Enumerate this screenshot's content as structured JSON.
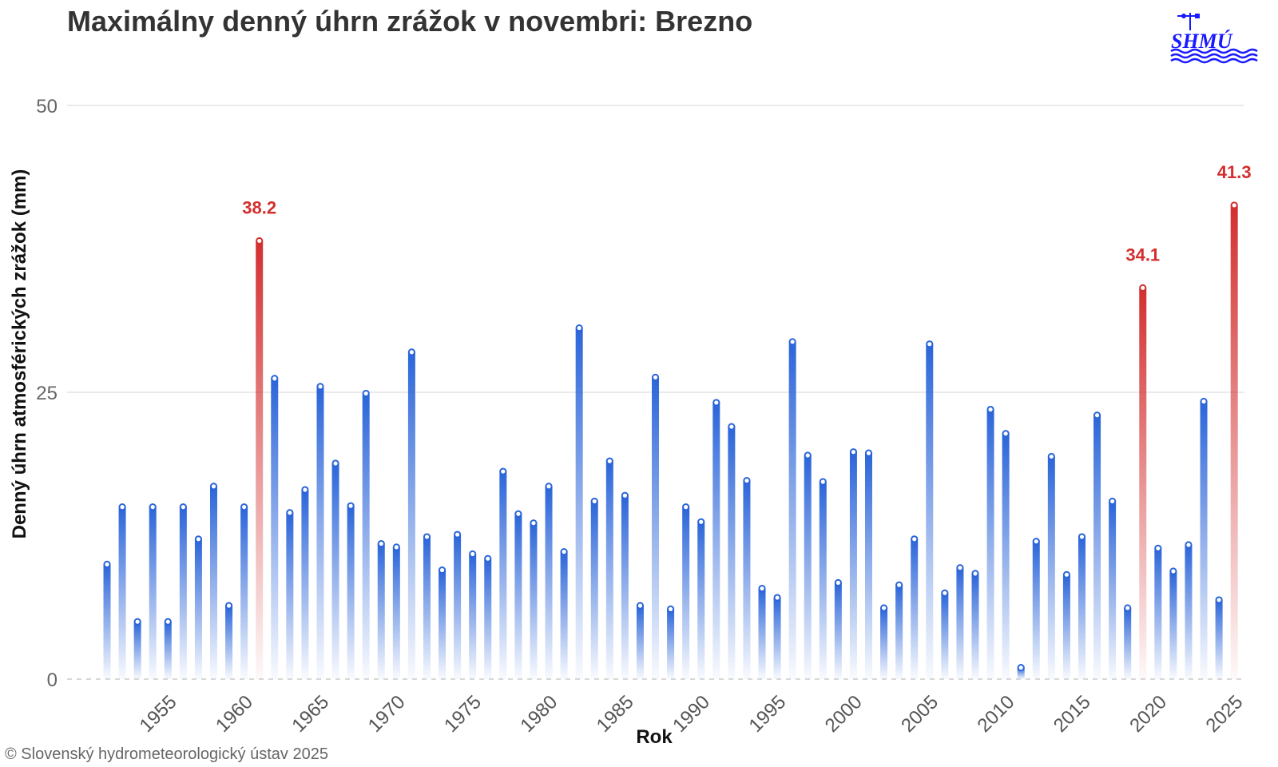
{
  "chart_data": {
    "type": "bar",
    "title": "Maximálny denný úhrn zrážok v novembri: Brezno",
    "xlabel": "Rok",
    "ylabel": "Denný úhrn atmosférických zrážok (mm)",
    "ylim": [
      0,
      50
    ],
    "yticks": [
      "0",
      "25",
      "50"
    ],
    "xticks": [
      "1955",
      "1960",
      "1965",
      "1970",
      "1975",
      "1980",
      "1985",
      "1990",
      "1995",
      "2000",
      "2005",
      "2010",
      "2015",
      "2020",
      "2025"
    ],
    "grid": true,
    "x": [
      1951,
      1952,
      1953,
      1954,
      1955,
      1956,
      1957,
      1958,
      1959,
      1960,
      1961,
      1962,
      1963,
      1964,
      1965,
      1966,
      1967,
      1968,
      1969,
      1970,
      1971,
      1972,
      1973,
      1974,
      1975,
      1976,
      1977,
      1978,
      1979,
      1980,
      1981,
      1982,
      1983,
      1984,
      1985,
      1986,
      1987,
      1988,
      1989,
      1990,
      1991,
      1992,
      1993,
      1994,
      1995,
      1996,
      1997,
      1998,
      1999,
      2000,
      2001,
      2002,
      2003,
      2004,
      2005,
      2006,
      2007,
      2008,
      2009,
      2010,
      2011,
      2012,
      2013,
      2014,
      2015,
      2016,
      2017,
      2018,
      2019,
      2020,
      2021,
      2022,
      2023,
      2024,
      2025
    ],
    "values": [
      10.0,
      15.0,
      5.0,
      15.0,
      5.0,
      15.0,
      12.2,
      16.8,
      6.4,
      15.0,
      38.2,
      26.2,
      14.5,
      16.5,
      25.5,
      18.8,
      15.1,
      24.9,
      11.8,
      11.5,
      28.5,
      12.4,
      9.5,
      12.6,
      10.9,
      10.5,
      18.1,
      14.4,
      13.6,
      16.8,
      11.1,
      30.6,
      15.5,
      19.0,
      16.0,
      6.4,
      26.3,
      6.1,
      15.0,
      13.7,
      24.1,
      22.0,
      17.3,
      7.9,
      7.1,
      29.4,
      19.5,
      17.2,
      8.4,
      19.8,
      19.7,
      6.2,
      8.2,
      12.2,
      29.2,
      7.5,
      9.7,
      9.2,
      23.5,
      21.4,
      1.0,
      12.0,
      19.4,
      9.1,
      12.4,
      23.0,
      15.5,
      6.2,
      34.1,
      11.4,
      9.4,
      11.7,
      24.2,
      6.9,
      41.3
    ],
    "highlighted": [
      {
        "x": 1961,
        "label": "38.2"
      },
      {
        "x": 2019,
        "label": "34.1"
      },
      {
        "x": 2025,
        "label": "41.3"
      }
    ],
    "colors": {
      "normal": "#2b65d9",
      "highlight": "#d32f2f",
      "annotation": "#d32f2f",
      "grid": "#e4e4e4"
    }
  },
  "credit": "© Slovenský hydrometeorologický ústav 2025",
  "logo": {
    "text": "SHMÚ",
    "icon": "shmu-weather-vane-waves-logo"
  }
}
